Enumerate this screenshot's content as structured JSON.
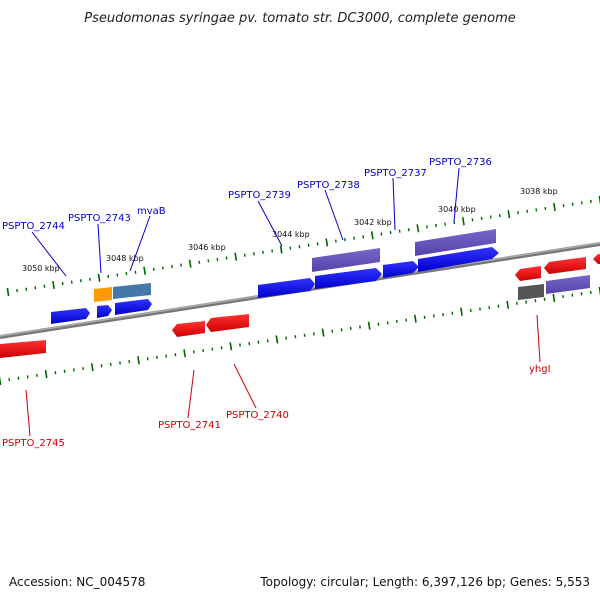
{
  "title": "Pseudomonas syringae pv. tomato str. DC3000, complete genome",
  "footer": {
    "accession": "Accession: NC_004578",
    "topology": "Topology: circular; Length: 6,397,126 bp; Genes: 5,553"
  },
  "scale_labels": [
    "3050 kbp",
    "3048 kbp",
    "3046 kbp",
    "3044 kbp",
    "3042 kbp",
    "3040 kbp",
    "3038 kbp"
  ],
  "genes": {
    "forward": [
      "PSPTO_2744",
      "PSPTO_2743",
      "mvaB",
      "PSPTO_2739",
      "PSPTO_2738",
      "PSPTO_2737",
      "PSPTO_2736"
    ],
    "reverse": [
      "PSPTO_2745",
      "PSPTO_2741",
      "PSPTO_2740",
      "yhgI"
    ]
  },
  "colors": {
    "forward_gene": "#0000ee",
    "forward_label": "#0000cc",
    "reverse_gene": "#ee0000",
    "reverse_label": "#cc0000",
    "feature_purple": "#6655bb",
    "feature_teal": "#4477aa",
    "feature_orange": "#ff9900",
    "feature_gray": "#555555",
    "backbone": "#777777",
    "tick": "#006600"
  }
}
